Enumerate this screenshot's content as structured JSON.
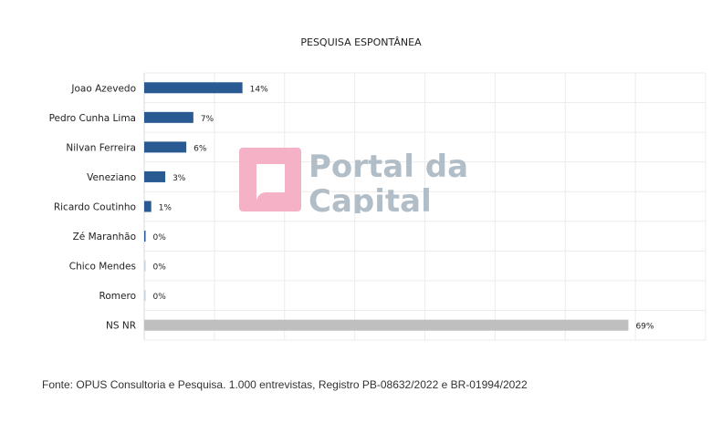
{
  "chart_data": {
    "type": "bar",
    "orientation": "horizontal",
    "title": "PESQUISA ESPONTÂNEA",
    "categories": [
      "Joao Azevedo",
      "Pedro Cunha Lima",
      "Nilvan Ferreira",
      "Veneziano",
      "Ricardo Coutinho",
      "Zé Maranhão",
      "Chico Mendes",
      "Romero",
      "NS NR"
    ],
    "values": [
      14,
      7,
      6,
      3,
      1,
      0,
      0,
      0,
      69
    ],
    "labels": [
      "14%",
      "7%",
      "6%",
      "3%",
      "1%",
      "0%",
      "0%",
      "0%",
      "69%"
    ],
    "colors": [
      "#2a5a92",
      "#2a5a92",
      "#2a5a92",
      "#2a5a92",
      "#2a5a92",
      "#2a5a92",
      "#c8d0dc",
      "#c8d0dc",
      "#bfbfbf"
    ],
    "xlim": [
      0,
      80
    ],
    "grid": true
  },
  "source": "Fonte: OPUS Consultoria e Pesquisa. 1.000 entrevistas, Registro PB-08632/2022 e BR-01994/2022",
  "watermark": {
    "text_line1": "Portal da",
    "text_line2": "Capital",
    "color_box": "#f4a9c0",
    "color_text": "#aab8c2"
  }
}
